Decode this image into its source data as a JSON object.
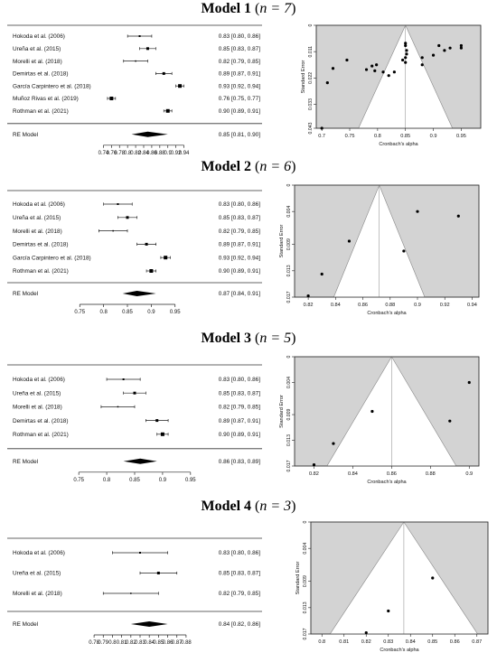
{
  "chart_data": [
    {
      "type": "forest",
      "title": "Model 1",
      "n_label": "n = 7",
      "xlim": [
        0.73,
        0.95
      ],
      "ticks": [
        "0.74",
        "0.76",
        "0.78",
        "0.8",
        "0.82",
        "0.84",
        "0.86",
        "0.88",
        "0.9",
        "0.92",
        "0.94"
      ],
      "tick_values": [
        0.74,
        0.76,
        0.78,
        0.8,
        0.82,
        0.84,
        0.86,
        0.88,
        0.9,
        0.92,
        0.94
      ],
      "studies": [
        {
          "label": "Hokoda et al. (2006)",
          "est": 0.83,
          "lo": 0.8,
          "hi": 0.86,
          "ci": "0.83 [0.80, 0.86]",
          "w": 2
        },
        {
          "label": "Ureña et al. (2015)",
          "est": 0.85,
          "lo": 0.83,
          "hi": 0.87,
          "ci": "0.85 [0.83, 0.87]",
          "w": 3
        },
        {
          "label": "Morelli et al. (2018)",
          "est": 0.82,
          "lo": 0.79,
          "hi": 0.85,
          "ci": "0.82 [0.79, 0.85]",
          "w": 1.5
        },
        {
          "label": "Demirtas et al. (2018)",
          "est": 0.89,
          "lo": 0.87,
          "hi": 0.91,
          "ci": "0.89 [0.87, 0.91]",
          "w": 3
        },
        {
          "label": "García Carpintero et al. (2018)",
          "est": 0.93,
          "lo": 0.92,
          "hi": 0.94,
          "ci": "0.93 [0.92, 0.94]",
          "w": 4
        },
        {
          "label": "Muñoz Rivas et al. (2019)",
          "est": 0.76,
          "lo": 0.75,
          "hi": 0.77,
          "ci": "0.76 [0.75, 0.77]",
          "w": 4
        },
        {
          "label": "Rothman et al. (2021)",
          "est": 0.9,
          "lo": 0.89,
          "hi": 0.91,
          "ci": "0.90 [0.89, 0.91]",
          "w": 4
        }
      ],
      "re": {
        "label": "RE Model",
        "est": 0.85,
        "lo": 0.81,
        "hi": 0.9,
        "ci": "0.85 [0.81, 0.90]"
      }
    },
    {
      "type": "forest",
      "title": "Model 2",
      "n_label": "n = 6",
      "xlim": [
        0.74,
        0.96
      ],
      "ticks": [
        "0.75",
        "0.8",
        "0.85",
        "0.9",
        "0.95"
      ],
      "tick_values": [
        0.75,
        0.8,
        0.85,
        0.9,
        0.95
      ],
      "studies": [
        {
          "label": "Hokoda et al. (2006)",
          "est": 0.83,
          "lo": 0.8,
          "hi": 0.86,
          "ci": "0.83 [0.80, 0.86]",
          "w": 2
        },
        {
          "label": "Ureña et al. (2015)",
          "est": 0.85,
          "lo": 0.83,
          "hi": 0.87,
          "ci": "0.85 [0.83, 0.87]",
          "w": 3
        },
        {
          "label": "Morelli et al. (2018)",
          "est": 0.82,
          "lo": 0.79,
          "hi": 0.85,
          "ci": "0.82 [0.79, 0.85]",
          "w": 1.5
        },
        {
          "label": "Demirtas et al. (2018)",
          "est": 0.89,
          "lo": 0.87,
          "hi": 0.91,
          "ci": "0.89 [0.87, 0.91]",
          "w": 3
        },
        {
          "label": "García Carpintero et al. (2018)",
          "est": 0.93,
          "lo": 0.92,
          "hi": 0.94,
          "ci": "0.93 [0.92, 0.94]",
          "w": 4
        },
        {
          "label": "Rothman et al. (2021)",
          "est": 0.9,
          "lo": 0.89,
          "hi": 0.91,
          "ci": "0.90 [0.89, 0.91]",
          "w": 4
        }
      ],
      "re": {
        "label": "RE Model",
        "est": 0.87,
        "lo": 0.84,
        "hi": 0.91,
        "ci": "0.87 [0.84, 0.91]"
      }
    },
    {
      "type": "forest",
      "title": "Model 3",
      "n_label": "n = 5",
      "xlim": [
        0.74,
        0.96
      ],
      "ticks": [
        "0.75",
        "0.8",
        "0.85",
        "0.9",
        "0.95"
      ],
      "tick_values": [
        0.75,
        0.8,
        0.85,
        0.9,
        0.95
      ],
      "studies": [
        {
          "label": "Hokoda et al. (2006)",
          "est": 0.83,
          "lo": 0.8,
          "hi": 0.86,
          "ci": "0.83 [0.80, 0.86]",
          "w": 2
        },
        {
          "label": "Ureña et al. (2015)",
          "est": 0.85,
          "lo": 0.83,
          "hi": 0.87,
          "ci": "0.85 [0.83, 0.87]",
          "w": 3
        },
        {
          "label": "Morelli et al. (2018)",
          "est": 0.82,
          "lo": 0.79,
          "hi": 0.85,
          "ci": "0.82 [0.79, 0.85]",
          "w": 1.5
        },
        {
          "label": "Demirtas et al. (2018)",
          "est": 0.89,
          "lo": 0.87,
          "hi": 0.91,
          "ci": "0.89 [0.87, 0.91]",
          "w": 3
        },
        {
          "label": "Rothman et al. (2021)",
          "est": 0.9,
          "lo": 0.89,
          "hi": 0.91,
          "ci": "0.90 [0.89, 0.91]",
          "w": 4
        }
      ],
      "re": {
        "label": "RE Model",
        "est": 0.86,
        "lo": 0.83,
        "hi": 0.89,
        "ci": "0.86 [0.83, 0.89]"
      }
    },
    {
      "type": "forest",
      "title": "Model 4",
      "n_label": "n = 3",
      "xlim": [
        0.775,
        0.885
      ],
      "ticks": [
        "0.78",
        "0.79",
        "0.8",
        "0.81",
        "0.82",
        "0.83",
        "0.84",
        "0.85",
        "0.86",
        "0.87",
        "0.88"
      ],
      "tick_values": [
        0.78,
        0.79,
        0.8,
        0.81,
        0.82,
        0.83,
        0.84,
        0.85,
        0.86,
        0.87,
        0.88
      ],
      "studies": [
        {
          "label": "Hokoda et al. (2006)",
          "est": 0.83,
          "lo": 0.8,
          "hi": 0.86,
          "ci": "0.83 [0.80, 0.86]",
          "w": 2
        },
        {
          "label": "Ureña et al. (2015)",
          "est": 0.85,
          "lo": 0.83,
          "hi": 0.87,
          "ci": "0.85 [0.83, 0.87]",
          "w": 3
        },
        {
          "label": "Morelli et al. (2018)",
          "est": 0.82,
          "lo": 0.79,
          "hi": 0.85,
          "ci": "0.82 [0.79, 0.85]",
          "w": 1.5
        }
      ],
      "re": {
        "label": "RE Model",
        "est": 0.84,
        "lo": 0.82,
        "hi": 0.86,
        "ci": "0.84 [0.82, 0.86]"
      }
    },
    {
      "type": "funnel",
      "xlabel": "Cronbach's alpha",
      "ylabel": "Standard Error",
      "center": 0.85,
      "xlim": [
        0.69,
        0.985
      ],
      "ylim": [
        0,
        0.043
      ],
      "xticks": [
        "0.7",
        "0.75",
        "0.8",
        "0.85",
        "0.9",
        "0.95"
      ],
      "xtick_values": [
        0.7,
        0.75,
        0.8,
        0.85,
        0.9,
        0.95
      ],
      "yticks": [
        "0",
        "0.011",
        "0.022",
        "0.033",
        "0.043"
      ],
      "ytick_values": [
        0,
        0.011,
        0.022,
        0.033,
        0.043
      ],
      "points": [
        {
          "x": 0.7,
          "y": 0.043
        },
        {
          "x": 0.71,
          "y": 0.024
        },
        {
          "x": 0.72,
          "y": 0.018
        },
        {
          "x": 0.745,
          "y": 0.0145
        },
        {
          "x": 0.78,
          "y": 0.0185
        },
        {
          "x": 0.79,
          "y": 0.017
        },
        {
          "x": 0.795,
          "y": 0.019
        },
        {
          "x": 0.798,
          "y": 0.0165
        },
        {
          "x": 0.81,
          "y": 0.0195
        },
        {
          "x": 0.82,
          "y": 0.021
        },
        {
          "x": 0.83,
          "y": 0.0195
        },
        {
          "x": 0.845,
          "y": 0.0145
        },
        {
          "x": 0.85,
          "y": 0.0135
        },
        {
          "x": 0.85,
          "y": 0.0155
        },
        {
          "x": 0.85,
          "y": 0.0075
        },
        {
          "x": 0.85,
          "y": 0.0085
        },
        {
          "x": 0.852,
          "y": 0.0105
        },
        {
          "x": 0.852,
          "y": 0.012
        },
        {
          "x": 0.88,
          "y": 0.0135
        },
        {
          "x": 0.88,
          "y": 0.0165
        },
        {
          "x": 0.9,
          "y": 0.0125
        },
        {
          "x": 0.91,
          "y": 0.0085
        },
        {
          "x": 0.92,
          "y": 0.0105
        },
        {
          "x": 0.93,
          "y": 0.0095
        },
        {
          "x": 0.95,
          "y": 0.0085
        },
        {
          "x": 0.95,
          "y": 0.0095
        }
      ]
    },
    {
      "type": "funnel",
      "xlabel": "Cronbach's alpha",
      "ylabel": "Standard Error",
      "center": 0.872,
      "xlim": [
        0.81,
        0.945
      ],
      "ylim": [
        0,
        0.017
      ],
      "xticks": [
        "0.82",
        "0.84",
        "0.86",
        "0.88",
        "0.9",
        "0.92",
        "0.94"
      ],
      "xtick_values": [
        0.82,
        0.84,
        0.86,
        0.88,
        0.9,
        0.92,
        0.94
      ],
      "yticks": [
        "0",
        "0.004",
        "0.009",
        "0.013",
        "0.017"
      ],
      "ytick_values": [
        0,
        0.004,
        0.009,
        0.013,
        0.017
      ],
      "points": [
        {
          "x": 0.82,
          "y": 0.0168
        },
        {
          "x": 0.83,
          "y": 0.0135
        },
        {
          "x": 0.85,
          "y": 0.0085
        },
        {
          "x": 0.89,
          "y": 0.01
        },
        {
          "x": 0.9,
          "y": 0.004
        },
        {
          "x": 0.93,
          "y": 0.0047
        }
      ]
    },
    {
      "type": "funnel",
      "xlabel": "Cronbach's alpha",
      "ylabel": "Standard Error",
      "center": 0.86,
      "xlim": [
        0.81,
        0.905
      ],
      "ylim": [
        0,
        0.017
      ],
      "xticks": [
        "0.82",
        "0.84",
        "0.86",
        "0.88",
        "0.9"
      ],
      "xtick_values": [
        0.82,
        0.84,
        0.86,
        0.88,
        0.9
      ],
      "yticks": [
        "0",
        "0.004",
        "0.009",
        "0.013",
        "0.017"
      ],
      "ytick_values": [
        0,
        0.004,
        0.009,
        0.013,
        0.017
      ],
      "points": [
        {
          "x": 0.82,
          "y": 0.0168
        },
        {
          "x": 0.83,
          "y": 0.0135
        },
        {
          "x": 0.85,
          "y": 0.0085
        },
        {
          "x": 0.89,
          "y": 0.01
        },
        {
          "x": 0.9,
          "y": 0.004
        }
      ]
    },
    {
      "type": "funnel",
      "xlabel": "Cronbach's alpha",
      "ylabel": "Standard Error",
      "center": 0.837,
      "xlim": [
        0.795,
        0.875
      ],
      "ylim": [
        0,
        0.017
      ],
      "xticks": [
        "0.8",
        "0.81",
        "0.82",
        "0.83",
        "0.84",
        "0.85",
        "0.86",
        "0.87",
        "0.88"
      ],
      "xtick_values": [
        0.8,
        0.81,
        0.82,
        0.83,
        0.84,
        0.85,
        0.86,
        0.87,
        0.88
      ],
      "yticks": [
        "0",
        "0.004",
        "0.009",
        "0.013",
        "0.017"
      ],
      "ytick_values": [
        0,
        0.004,
        0.009,
        0.013,
        0.017
      ],
      "points": [
        {
          "x": 0.82,
          "y": 0.0168
        },
        {
          "x": 0.83,
          "y": 0.0135
        },
        {
          "x": 0.85,
          "y": 0.0085
        }
      ]
    }
  ]
}
